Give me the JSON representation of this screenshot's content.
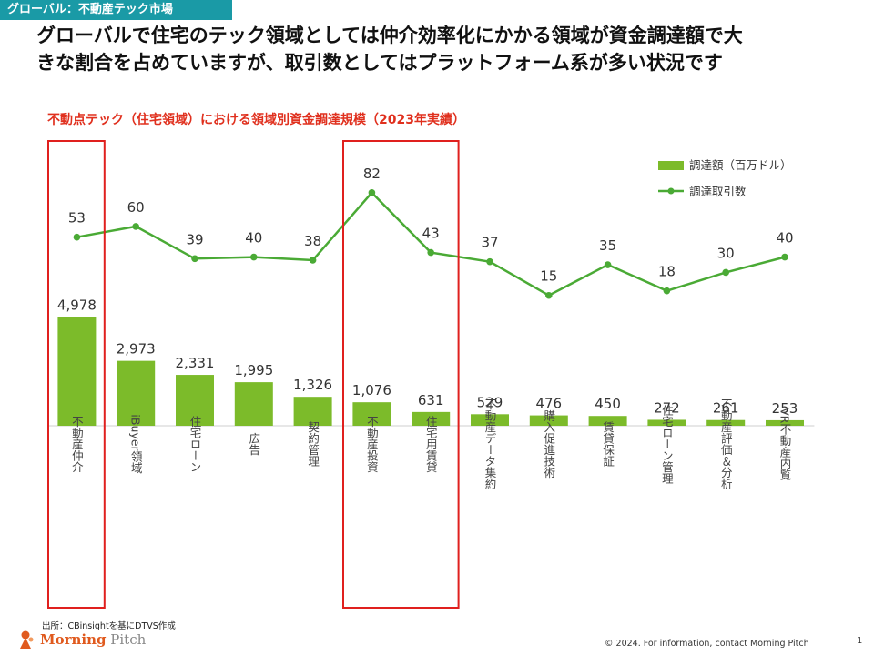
{
  "header": {
    "tag": "グローバル：不動産テック市場",
    "headline_line1": "グローバルで住宅のテック領域としては仲介効率化にかかる領域が資金調達額で大",
    "headline_line2": "きな割合を占めていますが、取引数としてはプラットフォーム系が多い状況です"
  },
  "chart_data": {
    "type": "bar",
    "title": "不動点テック（住宅領域）における領域別資金調達規模（2023年実績）",
    "categories": [
      "不動産仲介",
      "iBuyer領域",
      "住宅ローン",
      "広告",
      "契約管理",
      "不動産投資",
      "住宅用賃貸",
      "不動産データ集約",
      "購入促進技術",
      "賃貸保証",
      "住宅ローン管理",
      "不動産評価＆分析",
      "VR不動産内覧"
    ],
    "series": [
      {
        "name": "調達額（百万ドル）",
        "kind": "bar",
        "color": "#7cbb2a",
        "values": [
          4978,
          2973,
          2331,
          1995,
          1326,
          1076,
          631,
          529,
          476,
          450,
          272,
          261,
          253
        ],
        "labels": [
          "4,978",
          "2,973",
          "2,331",
          "1,995",
          "1,326",
          "1,076",
          "631",
          "529",
          "476",
          "450",
          "272",
          "261",
          "253"
        ]
      },
      {
        "name": "調達取引数",
        "kind": "line",
        "color": "#4aaa35",
        "values": [
          53,
          60,
          39,
          40,
          38,
          82,
          43,
          37,
          15,
          35,
          18,
          30,
          40
        ],
        "labels": [
          "53",
          "60",
          "39",
          "40",
          "38",
          "82",
          "43",
          "37",
          "15",
          "35",
          "18",
          "30",
          "40"
        ]
      }
    ],
    "legend_position": "top-right",
    "highlight_categories": [
      "不動産仲介",
      "不動産投資",
      "住宅用賃貸"
    ],
    "highlight_color": "#e0201e",
    "bar_ylim": [
      0,
      10000
    ],
    "line_ylim": [
      -70,
      108
    ]
  },
  "footer": {
    "source": "出所：CBinsightを基にDTVS作成",
    "logo_word1": "Morning",
    "logo_word2": "Pitch",
    "copyright": "© 2024. For information, contact Morning Pitch",
    "page": "1"
  }
}
